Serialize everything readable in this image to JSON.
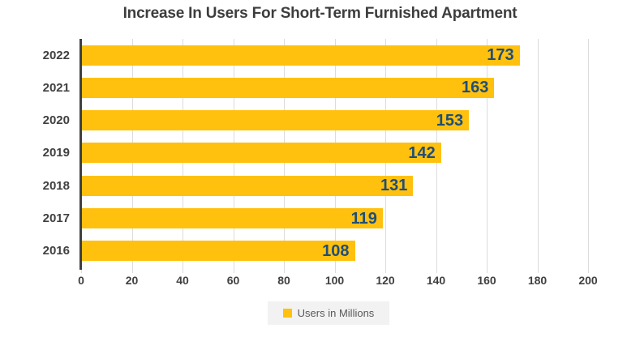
{
  "title": "Increase In Users For Short-Term Furnished Apartment",
  "legend": {
    "label": "Users in Millions"
  },
  "colors": {
    "bar": "#FFC10E",
    "value_label": "#1F4E79",
    "axis_text": "#404040",
    "gridline": "#DCDCDC",
    "axis_line": "#3F3F3F",
    "legend_bg": "#F2F2F2",
    "legend_text": "#595959",
    "title": "#3D3D3D"
  },
  "chart_data": {
    "type": "bar",
    "orientation": "horizontal",
    "title": "Increase In Users For Short-Term Furnished Apartment",
    "categories": [
      "2022",
      "2021",
      "2020",
      "2019",
      "2018",
      "2017",
      "2016"
    ],
    "values": [
      173,
      163,
      153,
      142,
      131,
      119,
      108
    ],
    "series_name": "Users in Millions",
    "xlabel": "",
    "ylabel": "",
    "xlim": [
      0,
      200
    ],
    "xticks": [
      0,
      20,
      40,
      60,
      80,
      100,
      120,
      140,
      160,
      180,
      200
    ],
    "grid": true,
    "value_labels": "inside-end",
    "legend_position": "bottom-center"
  }
}
